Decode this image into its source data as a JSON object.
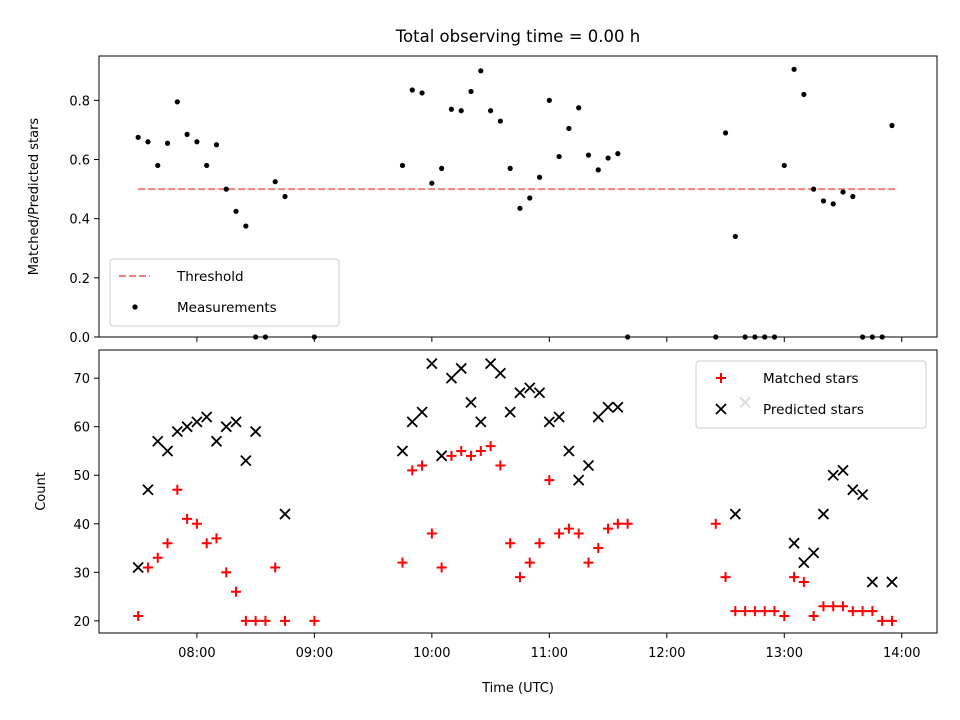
{
  "figure": {
    "title": "Total observing time = 0.00 h",
    "xlabel": "Time (UTC)",
    "xticks": [
      {
        "t": "08:00",
        "label": "08:00"
      },
      {
        "t": "09:00",
        "label": "09:00"
      },
      {
        "t": "10:00",
        "label": "10:00"
      },
      {
        "t": "11:00",
        "label": "11:00"
      },
      {
        "t": "12:00",
        "label": "12:00"
      },
      {
        "t": "13:00",
        "label": "13:00"
      },
      {
        "t": "14:00",
        "label": "14:00"
      }
    ],
    "xlim": [
      "07:10",
      "14:18"
    ]
  },
  "chart_data": [
    {
      "type": "scatter",
      "ylabel": "Matched/Predicted stars",
      "ylim": [
        0,
        0.95
      ],
      "yticks": [
        {
          "v": 0.0,
          "label": "0.0"
        },
        {
          "v": 0.2,
          "label": "0.2"
        },
        {
          "v": 0.4,
          "label": "0.4"
        },
        {
          "v": 0.6,
          "label": "0.6"
        },
        {
          "v": 0.8,
          "label": "0.8"
        }
      ],
      "legend": {
        "placement": "lower-left",
        "entries": [
          {
            "label": "Threshold",
            "marker": "dashed-line",
            "color": "#f08080"
          },
          {
            "label": "Measurements",
            "marker": "dot",
            "color": "#000000"
          }
        ]
      },
      "series": [
        {
          "name": "Threshold",
          "style": "dashed-line",
          "color": "#f08080",
          "x": [
            "07:30",
            "13:57"
          ],
          "y": [
            0.5,
            0.5
          ]
        },
        {
          "name": "Measurements",
          "style": "dot",
          "color": "#000000",
          "x": [
            "07:30",
            "07:35",
            "07:40",
            "07:45",
            "07:50",
            "07:55",
            "08:00",
            "08:05",
            "08:10",
            "08:15",
            "08:20",
            "08:25",
            "08:30",
            "08:35",
            "08:40",
            "08:45",
            "09:00",
            "09:45",
            "09:50",
            "09:55",
            "10:00",
            "10:05",
            "10:10",
            "10:15",
            "10:20",
            "10:25",
            "10:30",
            "10:35",
            "10:40",
            "10:45",
            "10:50",
            "10:55",
            "11:00",
            "11:05",
            "11:10",
            "11:15",
            "11:20",
            "11:25",
            "11:30",
            "11:35",
            "11:40",
            "12:25",
            "12:30",
            "12:35",
            "12:40",
            "12:45",
            "12:50",
            "12:55",
            "13:00",
            "13:05",
            "13:10",
            "13:15",
            "13:20",
            "13:25",
            "13:30",
            "13:35",
            "13:40",
            "13:45",
            "13:50",
            "13:55"
          ],
          "y": [
            0.675,
            0.66,
            0.58,
            0.655,
            0.795,
            0.685,
            0.66,
            0.58,
            0.65,
            0.5,
            0.425,
            0.375,
            0.0,
            0.0,
            0.525,
            0.475,
            0.0,
            0.58,
            0.835,
            0.825,
            0.52,
            0.57,
            0.77,
            0.765,
            0.83,
            0.9,
            0.765,
            0.73,
            0.57,
            0.435,
            0.47,
            0.54,
            0.8,
            0.61,
            0.705,
            0.775,
            0.615,
            0.565,
            0.605,
            0.62,
            0.0,
            0.0,
            0.69,
            0.34,
            0.0,
            0.0,
            0.0,
            0.0,
            0.58,
            0.905,
            0.82,
            0.5,
            0.46,
            0.45,
            0.49,
            0.475,
            0.0,
            0.0,
            0.0,
            0.715
          ]
        }
      ]
    },
    {
      "type": "scatter",
      "ylabel": "Count",
      "ylim": [
        17.5,
        75.8
      ],
      "yticks": [
        {
          "v": 20,
          "label": "20"
        },
        {
          "v": 30,
          "label": "30"
        },
        {
          "v": 40,
          "label": "40"
        },
        {
          "v": 50,
          "label": "50"
        },
        {
          "v": 60,
          "label": "60"
        },
        {
          "v": 70,
          "label": "70"
        }
      ],
      "legend": {
        "placement": "upper-right",
        "entries": [
          {
            "label": "Matched stars",
            "marker": "plus",
            "color": "#ff0000"
          },
          {
            "label": "Predicted stars",
            "marker": "x",
            "color": "#000000"
          }
        ]
      },
      "series": [
        {
          "name": "Matched stars",
          "style": "plus",
          "color": "#ff0000",
          "x": [
            "07:30",
            "07:35",
            "07:40",
            "07:45",
            "07:50",
            "07:55",
            "08:00",
            "08:05",
            "08:10",
            "08:15",
            "08:20",
            "08:25",
            "08:30",
            "08:35",
            "08:40",
            "08:45",
            "09:00",
            "09:45",
            "09:50",
            "09:55",
            "10:00",
            "10:05",
            "10:10",
            "10:15",
            "10:20",
            "10:25",
            "10:30",
            "10:35",
            "10:40",
            "10:45",
            "10:50",
            "10:55",
            "11:00",
            "11:05",
            "11:10",
            "11:15",
            "11:20",
            "11:25",
            "11:30",
            "11:35",
            "11:40",
            "12:25",
            "12:30",
            "12:35",
            "12:40",
            "12:45",
            "12:50",
            "12:55",
            "13:00",
            "13:05",
            "13:10",
            "13:15",
            "13:20",
            "13:25",
            "13:30",
            "13:35",
            "13:40",
            "13:45",
            "13:50",
            "13:55"
          ],
          "y": [
            21,
            31,
            33,
            36,
            47,
            41,
            40,
            36,
            37,
            30,
            26,
            20,
            20,
            20,
            31,
            20,
            20,
            32,
            51,
            52,
            38,
            31,
            54,
            55,
            54,
            55,
            56,
            52,
            36,
            29,
            32,
            36,
            49,
            38,
            39,
            38,
            32,
            35,
            39,
            40,
            40,
            40,
            29,
            22,
            22,
            22,
            22,
            22,
            21,
            29,
            28,
            21,
            23,
            23,
            23,
            22,
            22,
            22,
            20,
            20
          ]
        },
        {
          "name": "Predicted stars",
          "style": "x",
          "color": "#000000",
          "x": [
            "07:30",
            "07:35",
            "07:40",
            "07:45",
            "07:50",
            "07:55",
            "08:00",
            "08:05",
            "08:10",
            "08:15",
            "08:20",
            "08:25",
            "08:30",
            "08:45",
            "09:45",
            "09:50",
            "09:55",
            "10:00",
            "10:05",
            "10:10",
            "10:15",
            "10:20",
            "10:25",
            "10:30",
            "10:35",
            "10:40",
            "10:45",
            "10:50",
            "10:55",
            "11:00",
            "11:05",
            "11:10",
            "11:15",
            "11:20",
            "11:25",
            "11:30",
            "11:35",
            "12:35",
            "12:40",
            "13:05",
            "13:10",
            "13:15",
            "13:20",
            "13:25",
            "13:30",
            "13:35",
            "13:40",
            "13:45",
            "13:55"
          ],
          "y": [
            31,
            47,
            57,
            55,
            59,
            60,
            61,
            62,
            57,
            60,
            61,
            53,
            59,
            42,
            55,
            61,
            63,
            73,
            54,
            70,
            72,
            65,
            61,
            73,
            71,
            63,
            67,
            68,
            67,
            61,
            62,
            55,
            49,
            52,
            62,
            64,
            64,
            42,
            65,
            36,
            32,
            34,
            42,
            50,
            51,
            47,
            46,
            28,
            28
          ]
        }
      ]
    }
  ]
}
